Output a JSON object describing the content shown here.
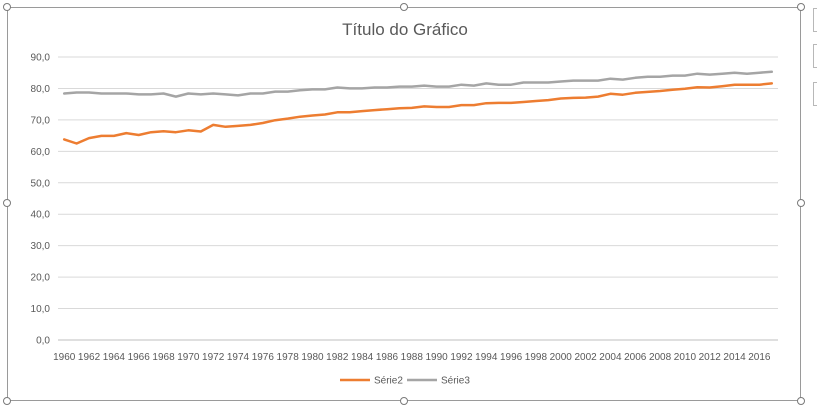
{
  "chart_data": {
    "type": "line",
    "title": "Título do Gráfico",
    "xlabel": "",
    "ylabel": "",
    "ylim": [
      0,
      90
    ],
    "y_ticks": [
      "0,0",
      "10,0",
      "20,0",
      "30,0",
      "40,0",
      "50,0",
      "60,0",
      "70,0",
      "80,0",
      "90,0"
    ],
    "x_tick_labels": [
      "1960",
      "1962",
      "1964",
      "1966",
      "1968",
      "1970",
      "1972",
      "1974",
      "1976",
      "1978",
      "1980",
      "1982",
      "1984",
      "1986",
      "1988",
      "1990",
      "1992",
      "1994",
      "1996",
      "1998",
      "2000",
      "2002",
      "2004",
      "2006",
      "2008",
      "2010",
      "2012",
      "2014",
      "2016"
    ],
    "x": [
      1960,
      1961,
      1962,
      1963,
      1964,
      1965,
      1966,
      1967,
      1968,
      1969,
      1970,
      1971,
      1972,
      1973,
      1974,
      1975,
      1976,
      1977,
      1978,
      1979,
      1980,
      1981,
      1982,
      1983,
      1984,
      1985,
      1986,
      1987,
      1988,
      1989,
      1990,
      1991,
      1992,
      1993,
      1994,
      1995,
      1996,
      1997,
      1998,
      1999,
      2000,
      2001,
      2002,
      2003,
      2004,
      2005,
      2006,
      2007,
      2008,
      2009,
      2010,
      2011,
      2012,
      2013,
      2014,
      2015,
      2016,
      2017
    ],
    "grid": true,
    "legend_position": "bottom",
    "series": [
      {
        "name": "Série2",
        "color": "#ED7D31",
        "values": [
          63.8,
          62.5,
          64.2,
          64.9,
          64.9,
          65.8,
          65.2,
          66.1,
          66.4,
          66.1,
          66.7,
          66.3,
          68.4,
          67.8,
          68.1,
          68.4,
          69.0,
          69.9,
          70.4,
          71.0,
          71.4,
          71.7,
          72.4,
          72.4,
          72.8,
          73.1,
          73.4,
          73.7,
          73.8,
          74.3,
          74.1,
          74.1,
          74.7,
          74.7,
          75.3,
          75.4,
          75.4,
          75.7,
          76.0,
          76.3,
          76.8,
          77.0,
          77.1,
          77.4,
          78.3,
          78.0,
          78.6,
          78.9,
          79.2,
          79.6,
          79.9,
          80.4,
          80.3,
          80.7,
          81.2,
          81.2,
          81.2,
          81.6
        ]
      },
      {
        "name": "Série3",
        "color": "#A5A5A5",
        "values": [
          78.4,
          78.7,
          78.7,
          78.4,
          78.4,
          78.4,
          78.1,
          78.1,
          78.4,
          77.4,
          78.4,
          78.1,
          78.4,
          78.1,
          77.8,
          78.4,
          78.4,
          79.0,
          79.0,
          79.4,
          79.7,
          79.7,
          80.3,
          80.0,
          80.0,
          80.3,
          80.3,
          80.6,
          80.6,
          80.9,
          80.6,
          80.6,
          81.2,
          80.9,
          81.6,
          81.2,
          81.2,
          81.9,
          81.9,
          81.9,
          82.2,
          82.5,
          82.5,
          82.5,
          83.1,
          82.8,
          83.4,
          83.7,
          83.7,
          84.1,
          84.1,
          84.7,
          84.4,
          84.7,
          85.0,
          84.7,
          85.0,
          85.3
        ]
      }
    ]
  }
}
